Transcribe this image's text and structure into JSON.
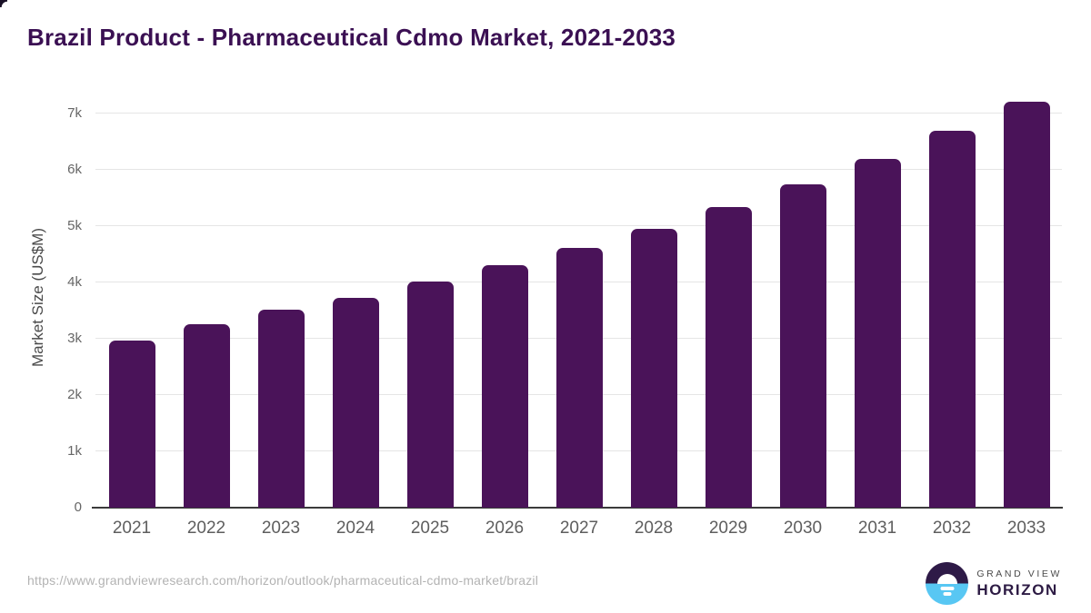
{
  "title": "Brazil Product - Pharmaceutical Cdmo Market, 2021-2033",
  "footer": {
    "source_url": "https://www.grandviewresearch.com/horizon/outlook/pharmaceutical-cdmo-market/brazil",
    "logo": {
      "top_text": "GRAND VIEW",
      "bottom_text": "HORIZON"
    }
  },
  "colors": {
    "bar": "#4a1359",
    "title": "#3b1053",
    "gridline": "#e5e5e5",
    "axis_line": "#3b3b3b",
    "tick_label": "#666666",
    "x_label": "#5e5e5e",
    "url_text": "#b3b3b3",
    "logo_dark": "#2e1a47",
    "logo_blue": "#58c7f3"
  },
  "chart_data": {
    "type": "bar",
    "title": "Brazil Product - Pharmaceutical Cdmo Market, 2021-2033",
    "categories": [
      "2021",
      "2022",
      "2023",
      "2024",
      "2025",
      "2026",
      "2027",
      "2028",
      "2029",
      "2030",
      "2031",
      "2032",
      "2033"
    ],
    "values": [
      2970,
      3250,
      3510,
      3725,
      4010,
      4300,
      4610,
      4950,
      5340,
      5740,
      6190,
      6690,
      7210
    ],
    "xlabel": "",
    "ylabel": "Market Size (US$M)",
    "ylim": [
      0,
      7450
    ],
    "yticks": [
      0,
      1000,
      2000,
      3000,
      4000,
      5000,
      6000,
      7000
    ],
    "ytick_labels": [
      "0",
      "1k",
      "2k",
      "3k",
      "4k",
      "5k",
      "6k",
      "7k"
    ],
    "grid": true,
    "legend": false,
    "bar_color": "#4a1359"
  }
}
